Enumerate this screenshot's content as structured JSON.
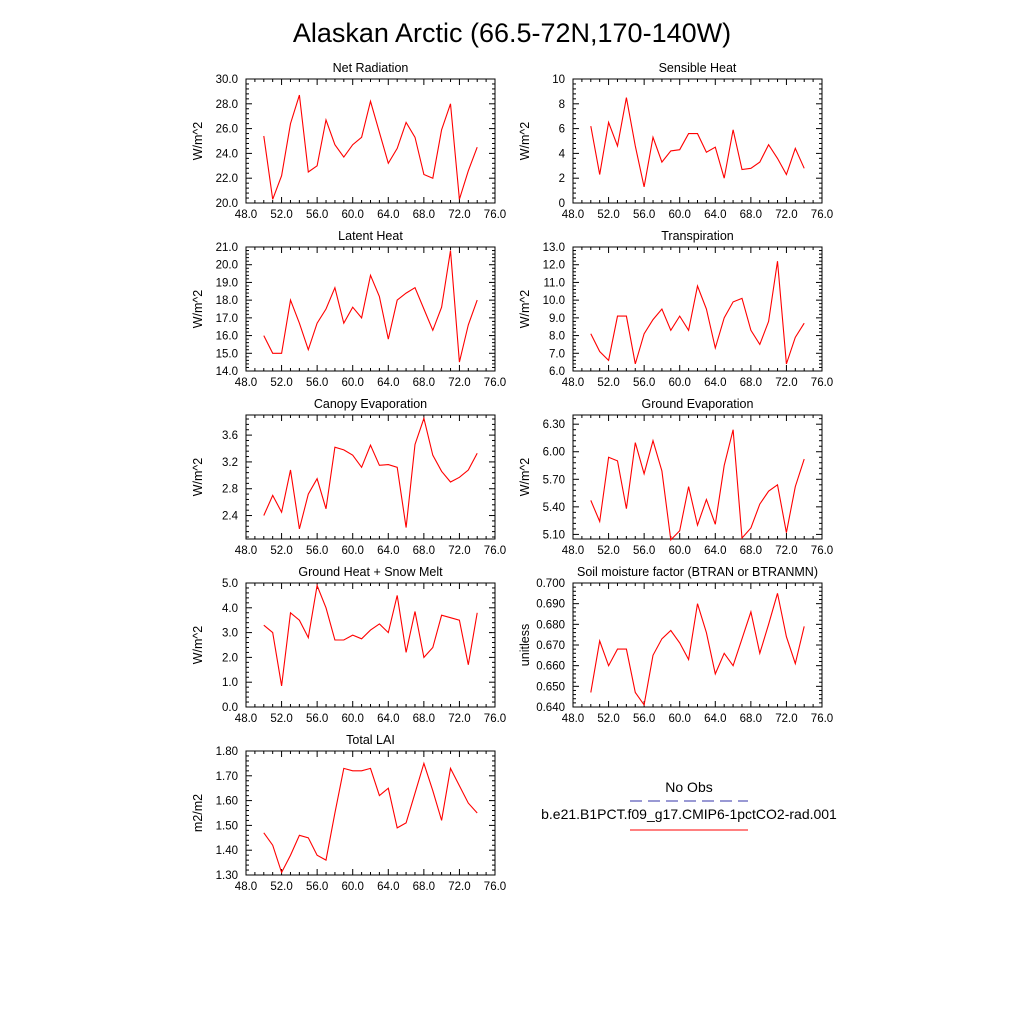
{
  "page_title": "Alaskan Arctic (66.5-72N,170-140W)",
  "colors": {
    "series": "#ff0000",
    "obs": "#3333aa",
    "axis": "#000000"
  },
  "legend": {
    "obs_label": "No Obs",
    "model_label": "b.e21.B1PCT.f09_g17.CMIP6-1pctCO2-rad.001"
  },
  "chart_data": [
    {
      "type": "line",
      "title": "Net Radiation",
      "ylabel": "W/m^2",
      "xlim": [
        48,
        76
      ],
      "ylim": [
        20,
        30
      ],
      "x_ticks": [
        48,
        52,
        56,
        60,
        64,
        68,
        72,
        76
      ],
      "x_tick_labels": [
        "48.0",
        "52.0",
        "56.0",
        "60.0",
        "64.0",
        "68.0",
        "72.0",
        "76.0"
      ],
      "y_ticks": [
        20,
        22,
        24,
        26,
        28,
        30
      ],
      "y_tick_labels": [
        "20.0",
        "22.0",
        "24.0",
        "26.0",
        "28.0",
        "30.0"
      ],
      "x": [
        50,
        51,
        52,
        53,
        54,
        55,
        56,
        57,
        58,
        59,
        60,
        61,
        62,
        63,
        64,
        65,
        66,
        67,
        68,
        69,
        70,
        71,
        72,
        73,
        74
      ],
      "values": [
        25.4,
        20.3,
        22.2,
        26.4,
        28.7,
        22.5,
        23.0,
        26.7,
        24.7,
        23.7,
        24.7,
        25.3,
        28.2,
        25.7,
        23.2,
        24.4,
        26.5,
        25.3,
        22.3,
        22.0,
        25.9,
        28.0,
        20.3,
        22.6,
        24.5
      ]
    },
    {
      "type": "line",
      "title": "Sensible Heat",
      "ylabel": "W/m^2",
      "xlim": [
        48,
        76
      ],
      "ylim": [
        0,
        10
      ],
      "x_ticks": [
        48,
        52,
        56,
        60,
        64,
        68,
        72,
        76
      ],
      "x_tick_labels": [
        "48.0",
        "52.0",
        "56.0",
        "60.0",
        "64.0",
        "68.0",
        "72.0",
        "76.0"
      ],
      "y_ticks": [
        0,
        2,
        4,
        6,
        8,
        10
      ],
      "y_tick_labels": [
        "0",
        "2",
        "4",
        "6",
        "8",
        "10"
      ],
      "x": [
        50,
        51,
        52,
        53,
        54,
        55,
        56,
        57,
        58,
        59,
        60,
        61,
        62,
        63,
        64,
        65,
        66,
        67,
        68,
        69,
        70,
        71,
        72,
        73,
        74
      ],
      "values": [
        6.2,
        2.3,
        6.5,
        4.6,
        8.5,
        4.6,
        1.3,
        5.3,
        3.3,
        4.2,
        4.3,
        5.6,
        5.6,
        4.1,
        4.5,
        2.0,
        5.9,
        2.7,
        2.8,
        3.3,
        4.7,
        3.6,
        2.3,
        4.4,
        2.8
      ]
    },
    {
      "type": "line",
      "title": "Latent Heat",
      "ylabel": "W/m^2",
      "xlim": [
        48,
        76
      ],
      "ylim": [
        14,
        21
      ],
      "x_ticks": [
        48,
        52,
        56,
        60,
        64,
        68,
        72,
        76
      ],
      "x_tick_labels": [
        "48.0",
        "52.0",
        "56.0",
        "60.0",
        "64.0",
        "68.0",
        "72.0",
        "76.0"
      ],
      "y_ticks": [
        14,
        15,
        16,
        17,
        18,
        19,
        20,
        21
      ],
      "y_tick_labels": [
        "14.0",
        "15.0",
        "16.0",
        "17.0",
        "18.0",
        "19.0",
        "20.0",
        "21.0"
      ],
      "x": [
        50,
        51,
        52,
        53,
        54,
        55,
        56,
        57,
        58,
        59,
        60,
        61,
        62,
        63,
        64,
        65,
        66,
        67,
        68,
        69,
        70,
        71,
        72,
        73,
        74
      ],
      "values": [
        16.0,
        15.0,
        15.0,
        18.0,
        16.7,
        15.2,
        16.7,
        17.5,
        18.7,
        16.7,
        17.6,
        17.0,
        19.4,
        18.2,
        15.8,
        18.0,
        18.4,
        18.7,
        17.5,
        16.3,
        17.6,
        20.8,
        14.5,
        16.6,
        18.0
      ]
    },
    {
      "type": "line",
      "title": "Transpiration",
      "ylabel": "W/m^2",
      "xlim": [
        48,
        76
      ],
      "ylim": [
        6,
        13
      ],
      "x_ticks": [
        48,
        52,
        56,
        60,
        64,
        68,
        72,
        76
      ],
      "x_tick_labels": [
        "48.0",
        "52.0",
        "56.0",
        "60.0",
        "64.0",
        "68.0",
        "72.0",
        "76.0"
      ],
      "y_ticks": [
        6,
        7,
        8,
        9,
        10,
        11,
        12,
        13
      ],
      "y_tick_labels": [
        "6.0",
        "7.0",
        "8.0",
        "9.0",
        "10.0",
        "11.0",
        "12.0",
        "13.0"
      ],
      "x": [
        50,
        51,
        52,
        53,
        54,
        55,
        56,
        57,
        58,
        59,
        60,
        61,
        62,
        63,
        64,
        65,
        66,
        67,
        68,
        69,
        70,
        71,
        72,
        73,
        74
      ],
      "values": [
        8.1,
        7.1,
        6.6,
        9.1,
        9.1,
        6.4,
        8.1,
        8.9,
        9.5,
        8.3,
        9.1,
        8.3,
        10.8,
        9.5,
        7.3,
        9.0,
        9.9,
        10.1,
        8.3,
        7.5,
        8.8,
        12.2,
        6.4,
        7.9,
        8.7
      ]
    },
    {
      "type": "line",
      "title": "Canopy Evaporation",
      "ylabel": "W/m^2",
      "xlim": [
        48,
        76
      ],
      "ylim": [
        2.05,
        3.9
      ],
      "x_ticks": [
        48,
        52,
        56,
        60,
        64,
        68,
        72,
        76
      ],
      "x_tick_labels": [
        "48.0",
        "52.0",
        "56.0",
        "60.0",
        "64.0",
        "68.0",
        "72.0",
        "76.0"
      ],
      "y_ticks": [
        2.4,
        2.8,
        3.2,
        3.6
      ],
      "y_tick_labels": [
        "2.4",
        "2.8",
        "3.2",
        "3.6"
      ],
      "x": [
        50,
        51,
        52,
        53,
        54,
        55,
        56,
        57,
        58,
        59,
        60,
        61,
        62,
        63,
        64,
        65,
        66,
        67,
        68,
        69,
        70,
        71,
        72,
        73,
        74
      ],
      "values": [
        2.4,
        2.7,
        2.45,
        3.08,
        2.2,
        2.72,
        2.95,
        2.5,
        3.42,
        3.38,
        3.3,
        3.12,
        3.45,
        3.15,
        3.16,
        3.12,
        2.22,
        3.46,
        3.85,
        3.3,
        3.06,
        2.9,
        2.97,
        3.08,
        3.33
      ]
    },
    {
      "type": "line",
      "title": "Ground Evaporation",
      "ylabel": "W/m^2",
      "xlim": [
        48,
        76
      ],
      "ylim": [
        5.05,
        6.4
      ],
      "x_ticks": [
        48,
        52,
        56,
        60,
        64,
        68,
        72,
        76
      ],
      "x_tick_labels": [
        "48.0",
        "52.0",
        "56.0",
        "60.0",
        "64.0",
        "68.0",
        "72.0",
        "76.0"
      ],
      "y_ticks": [
        5.1,
        5.4,
        5.7,
        6.0,
        6.3
      ],
      "y_tick_labels": [
        "5.10",
        "5.40",
        "5.70",
        "6.00",
        "6.30"
      ],
      "x": [
        50,
        51,
        52,
        53,
        54,
        55,
        56,
        57,
        58,
        59,
        60,
        61,
        62,
        63,
        64,
        65,
        66,
        67,
        68,
        69,
        70,
        71,
        72,
        73,
        74
      ],
      "values": [
        5.47,
        5.24,
        5.94,
        5.9,
        5.38,
        6.1,
        5.76,
        6.12,
        5.79,
        5.04,
        5.14,
        5.62,
        5.2,
        5.48,
        5.21,
        5.85,
        6.24,
        5.06,
        5.17,
        5.43,
        5.57,
        5.64,
        5.12,
        5.62,
        5.92
      ]
    },
    {
      "type": "line",
      "title": "Ground Heat + Snow Melt",
      "ylabel": "W/m^2",
      "xlim": [
        48,
        76
      ],
      "ylim": [
        0,
        5
      ],
      "x_ticks": [
        48,
        52,
        56,
        60,
        64,
        68,
        72,
        76
      ],
      "x_tick_labels": [
        "48.0",
        "52.0",
        "56.0",
        "60.0",
        "64.0",
        "68.0",
        "72.0",
        "76.0"
      ],
      "y_ticks": [
        0,
        1,
        2,
        3,
        4,
        5
      ],
      "y_tick_labels": [
        "0.0",
        "1.0",
        "2.0",
        "3.0",
        "4.0",
        "5.0"
      ],
      "x": [
        50,
        51,
        52,
        53,
        54,
        55,
        56,
        57,
        58,
        59,
        60,
        61,
        62,
        63,
        64,
        65,
        66,
        67,
        68,
        69,
        70,
        71,
        72,
        73,
        74
      ],
      "values": [
        3.3,
        3.0,
        0.85,
        3.8,
        3.5,
        2.8,
        4.9,
        4.0,
        2.7,
        2.7,
        2.9,
        2.75,
        3.1,
        3.35,
        3.0,
        4.5,
        2.2,
        3.85,
        2.0,
        2.4,
        3.7,
        3.6,
        3.5,
        1.7,
        3.8
      ]
    },
    {
      "type": "line",
      "title": "Soil moisture factor (BTRAN or BTRANMN)",
      "ylabel": "unitless",
      "xlim": [
        48,
        76
      ],
      "ylim": [
        0.64,
        0.7
      ],
      "x_ticks": [
        48,
        52,
        56,
        60,
        64,
        68,
        72,
        76
      ],
      "x_tick_labels": [
        "48.0",
        "52.0",
        "56.0",
        "60.0",
        "64.0",
        "68.0",
        "72.0",
        "76.0"
      ],
      "y_ticks": [
        0.64,
        0.65,
        0.66,
        0.67,
        0.68,
        0.69,
        0.7
      ],
      "y_tick_labels": [
        "0.640",
        "0.650",
        "0.660",
        "0.670",
        "0.680",
        "0.690",
        "0.700"
      ],
      "x": [
        50,
        51,
        52,
        53,
        54,
        55,
        56,
        57,
        58,
        59,
        60,
        61,
        62,
        63,
        64,
        65,
        66,
        67,
        68,
        69,
        70,
        71,
        72,
        73,
        74
      ],
      "values": [
        0.647,
        0.672,
        0.66,
        0.668,
        0.668,
        0.647,
        0.641,
        0.665,
        0.673,
        0.677,
        0.671,
        0.663,
        0.69,
        0.676,
        0.656,
        0.666,
        0.66,
        0.673,
        0.686,
        0.666,
        0.68,
        0.695,
        0.674,
        0.661,
        0.679
      ]
    },
    {
      "type": "line",
      "title": "Total LAI",
      "ylabel": "m2/m2",
      "xlim": [
        48,
        76
      ],
      "ylim": [
        1.3,
        1.8
      ],
      "x_ticks": [
        48,
        52,
        56,
        60,
        64,
        68,
        72,
        76
      ],
      "x_tick_labels": [
        "48.0",
        "52.0",
        "56.0",
        "60.0",
        "64.0",
        "68.0",
        "72.0",
        "76.0"
      ],
      "y_ticks": [
        1.3,
        1.4,
        1.5,
        1.6,
        1.7,
        1.8
      ],
      "y_tick_labels": [
        "1.30",
        "1.40",
        "1.50",
        "1.60",
        "1.70",
        "1.80"
      ],
      "x": [
        50,
        51,
        52,
        53,
        54,
        55,
        56,
        57,
        58,
        59,
        60,
        61,
        62,
        63,
        64,
        65,
        66,
        67,
        68,
        69,
        70,
        71,
        72,
        73,
        74
      ],
      "values": [
        1.47,
        1.42,
        1.31,
        1.38,
        1.46,
        1.45,
        1.38,
        1.36,
        1.55,
        1.73,
        1.72,
        1.72,
        1.73,
        1.62,
        1.65,
        1.49,
        1.51,
        1.63,
        1.75,
        1.64,
        1.52,
        1.73,
        1.66,
        1.59,
        1.55
      ]
    }
  ]
}
